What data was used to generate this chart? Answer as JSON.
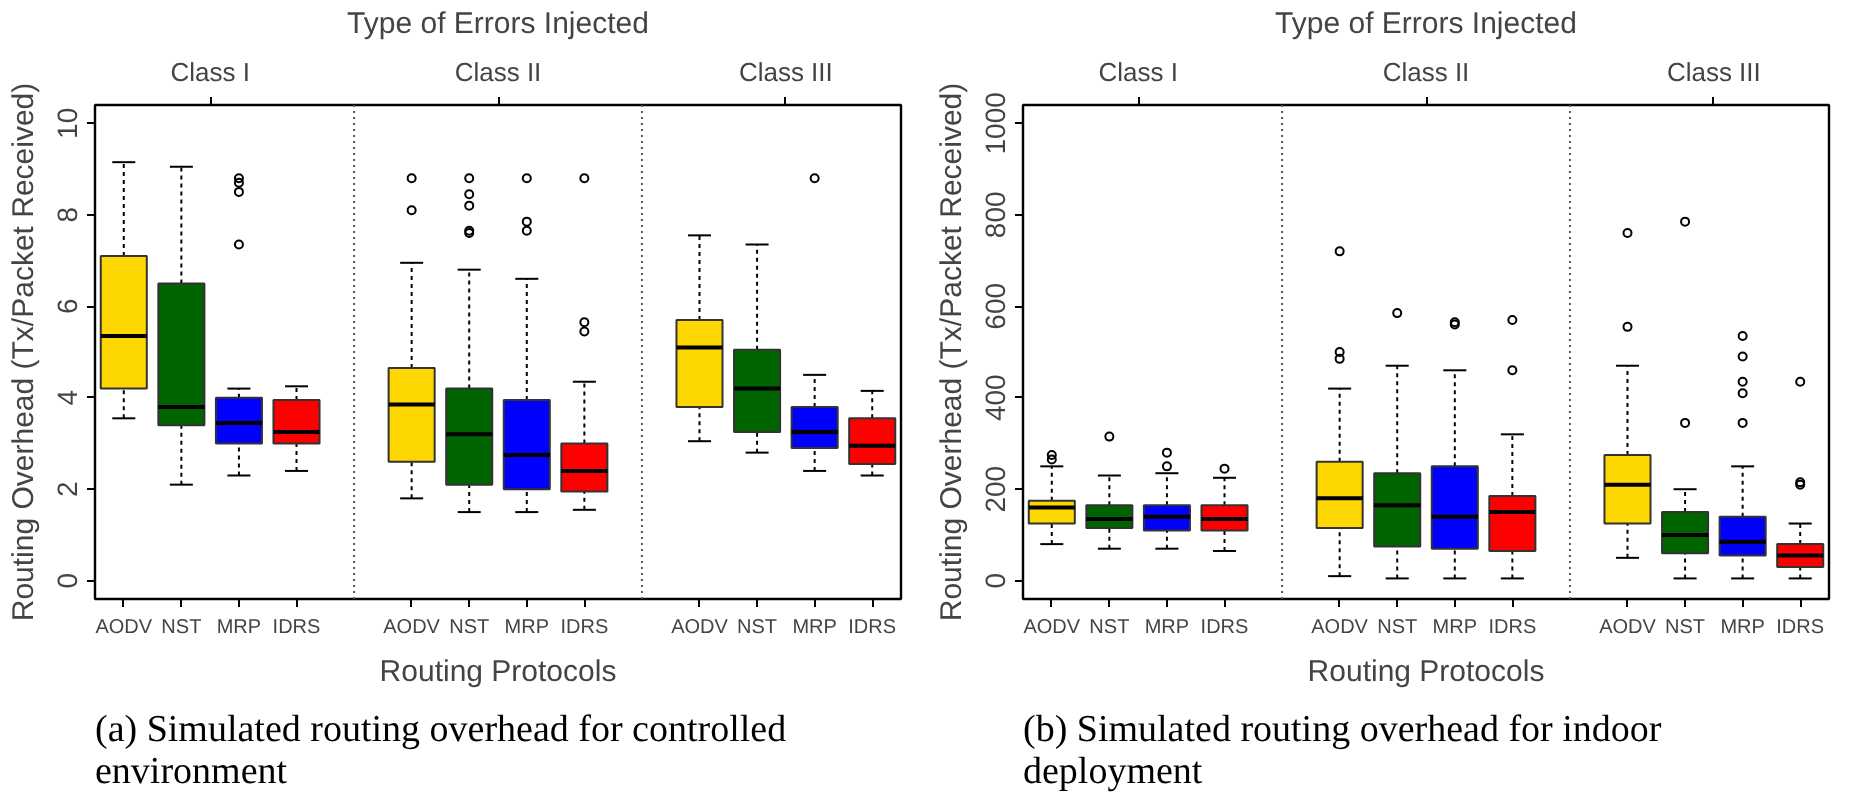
{
  "chart_data": [
    {
      "type": "box",
      "title": "Type of Errors Injected",
      "xlabel": "Routing Protocols",
      "ylabel": "Routing Overhead (Tx/Packet Received)",
      "categories": [
        "AODV",
        "NST",
        "MRP",
        "IDRS",
        null,
        "AODV",
        "NST",
        "MRP",
        "IDRS",
        null,
        "AODV",
        "NST",
        "MRP",
        "IDRS"
      ],
      "ylim": [
        -0.4,
        10.4
      ],
      "yticks": [
        0,
        2,
        4,
        6,
        8,
        10
      ],
      "colors": [
        "#ffd700",
        "#006400",
        "#0000ff",
        "#ff0000",
        null,
        "#ffd700",
        "#006400",
        "#0000ff",
        "#ff0000",
        null,
        "#ffd700",
        "#006400",
        "#0000ff",
        "#ff0000"
      ],
      "boxes": [
        {
          "low": 3.55,
          "q1": 4.2,
          "median": 5.35,
          "q3": 7.1,
          "high": 9.15
        },
        {
          "low": 2.1,
          "q1": 3.4,
          "median": 3.8,
          "q3": 6.5,
          "high": 9.05
        },
        {
          "low": 2.3,
          "q1": 3.0,
          "median": 3.45,
          "q3": 4.0,
          "high": 4.2,
          "outliers": [
            8.8,
            8.7,
            8.5,
            7.35
          ]
        },
        {
          "low": 2.4,
          "q1": 3.0,
          "median": 3.25,
          "q3": 3.95,
          "high": 4.25
        },
        null,
        {
          "low": 1.8,
          "q1": 2.6,
          "median": 3.85,
          "q3": 4.65,
          "high": 6.95,
          "outliers": [
            8.8,
            8.1
          ]
        },
        {
          "low": 1.5,
          "q1": 2.1,
          "median": 3.2,
          "q3": 4.2,
          "high": 6.8,
          "outliers": [
            8.8,
            8.45,
            8.2,
            7.65,
            7.6
          ]
        },
        {
          "low": 1.5,
          "q1": 2.0,
          "median": 2.75,
          "q3": 3.95,
          "high": 6.6,
          "outliers": [
            8.8,
            7.85,
            7.65
          ]
        },
        {
          "low": 1.55,
          "q1": 1.95,
          "median": 2.4,
          "q3": 3.0,
          "high": 4.35,
          "outliers": [
            8.8,
            5.65,
            5.45
          ]
        },
        null,
        {
          "low": 3.05,
          "q1": 3.8,
          "median": 5.1,
          "q3": 5.7,
          "high": 7.55
        },
        {
          "low": 2.8,
          "q1": 3.25,
          "median": 4.2,
          "q3": 5.05,
          "high": 7.35
        },
        {
          "low": 2.4,
          "q1": 2.9,
          "median": 3.25,
          "q3": 3.8,
          "high": 4.5,
          "outliers": [
            8.8
          ]
        },
        {
          "low": 2.3,
          "q1": 2.55,
          "median": 2.95,
          "q3": 3.55,
          "high": 4.15
        }
      ],
      "annotations": [
        "Class I",
        "Class II",
        "Class III",
        "(a)  Simulated routing overhead for controlled environment"
      ]
    },
    {
      "type": "box",
      "title": "Type of Errors Injected",
      "xlabel": "Routing Protocols",
      "ylabel": "Routing Overhead (Tx/Packet Received)",
      "categories": [
        "AODV",
        "NST",
        "MRP",
        "IDRS",
        null,
        "AODV",
        "NST",
        "MRP",
        "IDRS",
        null,
        "AODV",
        "NST",
        "MRP",
        "IDRS"
      ],
      "ylim": [
        -40,
        1040
      ],
      "yticks": [
        0,
        200,
        400,
        600,
        800,
        1000
      ],
      "colors": [
        "#ffd700",
        "#006400",
        "#0000ff",
        "#ff0000",
        null,
        "#ffd700",
        "#006400",
        "#0000ff",
        "#ff0000",
        null,
        "#ffd700",
        "#006400",
        "#0000ff",
        "#ff0000"
      ],
      "boxes": [
        {
          "low": 80,
          "q1": 125,
          "median": 160,
          "q3": 175,
          "high": 250,
          "outliers": [
            275,
            265
          ]
        },
        {
          "low": 70,
          "q1": 115,
          "median": 135,
          "q3": 165,
          "high": 230,
          "outliers": [
            315
          ]
        },
        {
          "low": 70,
          "q1": 110,
          "median": 140,
          "q3": 165,
          "high": 235,
          "outliers": [
            280,
            250
          ]
        },
        {
          "low": 65,
          "q1": 110,
          "median": 135,
          "q3": 165,
          "high": 225,
          "outliers": [
            245
          ]
        },
        null,
        {
          "low": 10,
          "q1": 115,
          "median": 180,
          "q3": 260,
          "high": 420,
          "outliers": [
            720,
            500,
            485
          ]
        },
        {
          "low": 5,
          "q1": 75,
          "median": 165,
          "q3": 235,
          "high": 470,
          "outliers": [
            585
          ]
        },
        {
          "low": 5,
          "q1": 70,
          "median": 140,
          "q3": 250,
          "high": 460,
          "outliers": [
            565,
            560
          ]
        },
        {
          "low": 5,
          "q1": 65,
          "median": 150,
          "q3": 185,
          "high": 320,
          "outliers": [
            570,
            460
          ]
        },
        null,
        {
          "low": 50,
          "q1": 125,
          "median": 210,
          "q3": 275,
          "high": 470,
          "outliers": [
            760,
            555
          ]
        },
        {
          "low": 5,
          "q1": 60,
          "median": 100,
          "q3": 150,
          "high": 200,
          "outliers": [
            785,
            345
          ]
        },
        {
          "low": 5,
          "q1": 55,
          "median": 85,
          "q3": 140,
          "high": 250,
          "outliers": [
            535,
            490,
            435,
            410,
            345
          ]
        },
        {
          "low": 5,
          "q1": 30,
          "median": 55,
          "q3": 80,
          "high": 125,
          "outliers": [
            435,
            215,
            210
          ]
        }
      ],
      "annotations": [
        "Class I",
        "Class II",
        "Class III",
        "(b)  Simulated routing overhead for indoor deployment"
      ]
    }
  ]
}
